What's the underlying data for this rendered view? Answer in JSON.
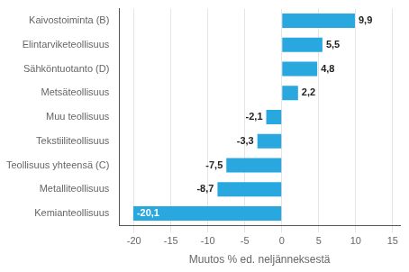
{
  "chart_data": {
    "type": "bar",
    "orientation": "horizontal",
    "categories": [
      "Kemianteollisuus",
      "Metalliteollisuus",
      "Teollisuus yhteensä (C)",
      "Tekstiiliteollisuus",
      "Muu teollisuus",
      "Metsäteollisuus",
      "Sähköntuotanto (D)",
      "Elintarviketeollisuus",
      "Kaivostoiminta (B)"
    ],
    "values": [
      -20.1,
      -8.7,
      -7.5,
      -3.3,
      -2.1,
      2.2,
      4.8,
      5.5,
      9.9
    ],
    "value_labels": [
      "-20,1",
      "-8,7",
      "-7,5",
      "-3,3",
      "-2,1",
      "2,2",
      "4,8",
      "5,5",
      "9,9"
    ],
    "color": "#29a8e0",
    "xlabel": "Muutos % ed. neljänneksestä",
    "xlim": [
      -22,
      16
    ],
    "xticks": [
      -20,
      -15,
      -10,
      -5,
      0,
      5,
      10,
      15
    ],
    "grid": true,
    "data_labels": true
  }
}
